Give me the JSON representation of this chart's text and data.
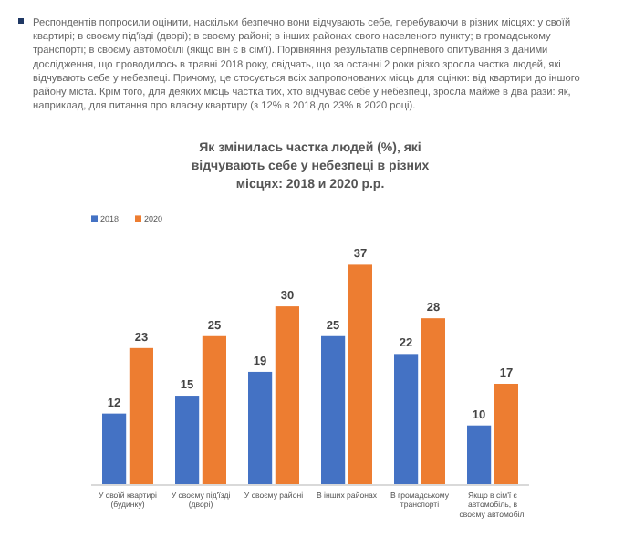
{
  "chart_data": {
    "type": "bar",
    "title": "Як змінилась частка людей (%), які відчувають себе у небезпеці в різних місцях: 2018 и 2020 р.р.",
    "annotations": [
      "Респондентів попросили оцінити, наскільки безпечно вони відчувають себе, перебуваючи в різних місцях: у своїй квартирі; в своєму під'їзді (дворі); в своєму районі; в інших районах свого населеного пункту; в громадському транспорті; в своєму автомобілі (якщо він є в сім'ї). Порівняння результатів серпневого опитування з даними дослідження, що проводилось в травні 2018 року, свідчать, що за останні 2 роки різко зросла частка людей, які відчувають себе у небезпеці. Причому, це стосується всіх запропонованих місць для оцінки: від квартири до іншого району міста. Крім того, для деяких місць частка тих, хто відчуває себе у небезпеці, зросла майже в два рази: як, наприклад, для питання про власну квартиру (з 12% в 2018 до 23% в 2020 році)."
    ],
    "categories": [
      "У своїй квартирі (будинку)",
      "У своєму під'їзді (дворі)",
      "У своєму районі",
      "В інших районах",
      "В громадському транспорті",
      "Якщо в сім'ї є автомобіль, в своєму автомобілі"
    ],
    "series": [
      {
        "name": "2018",
        "color": "#4472c4",
        "values": [
          12,
          15,
          19,
          25,
          22,
          10
        ]
      },
      {
        "name": "2020",
        "color": "#ed7d31",
        "values": [
          23,
          25,
          30,
          37,
          28,
          17
        ]
      }
    ],
    "data_labels": true,
    "legend": "top left",
    "grid": false
  }
}
